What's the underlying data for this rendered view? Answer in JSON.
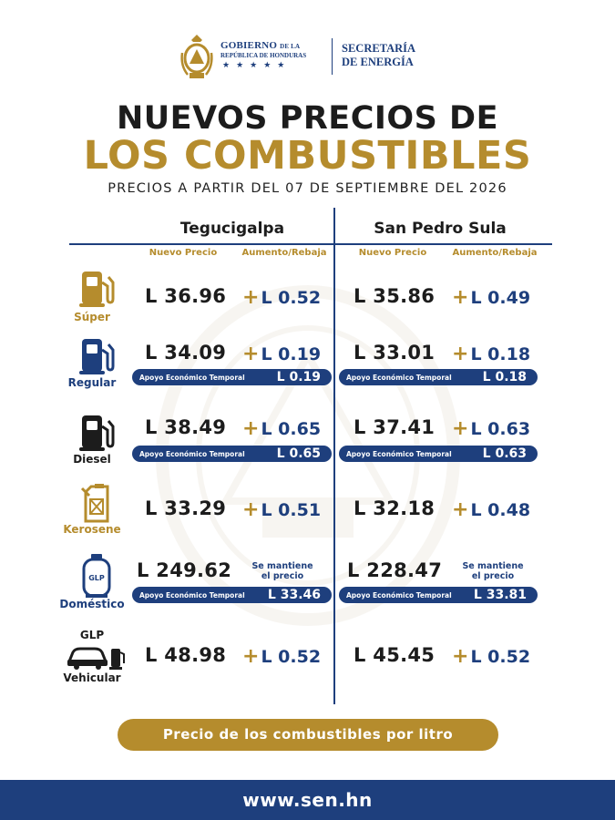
{
  "header": {
    "gov_line1": "GOBIERNO",
    "gov_line1_small": "DE LA",
    "gov_line2": "REPÚBLICA DE HONDURAS",
    "gov_stars": "★★★★★",
    "sec_line1": "SECRETARÍA",
    "sec_line2": "DE ENERGÍA"
  },
  "title_line1": "NUEVOS PRECIOS DE",
  "title_line2": "LOS COMBUSTIBLES",
  "subtitle": "PRECIOS A PARTIR DEL 07 DE SEPTIEMBRE DEL 2026",
  "cities": {
    "left": "Tegucigalpa",
    "right": "San Pedro Sula"
  },
  "column_headers": {
    "new_price": "Nuevo Precio",
    "change": "Aumento/Rebaja"
  },
  "apoyo_label": "Apoyo Económico Temporal",
  "plus_sign": "+",
  "colors": {
    "blue": "#1e3f7d",
    "gold": "#b58c2d",
    "red": "#c0392b"
  },
  "fuels": [
    {
      "name": "Súper",
      "label_color": "#b58c2d",
      "icon": "fuel-pump-icon",
      "teg_price": "L 36.96",
      "teg_change": "L 0.52",
      "sps_price": "L 35.86",
      "sps_change": "L 0.49"
    },
    {
      "name": "Regular",
      "label_color": "#1e3f7d",
      "icon": "fuel-pump-icon",
      "teg_price": "L 34.09",
      "teg_change": "L 0.19",
      "sps_price": "L 33.01",
      "sps_change": "L 0.18",
      "teg_apoyo": "L 0.19",
      "sps_apoyo": "L 0.18"
    },
    {
      "name": "Diesel",
      "label_color": "#1c1c1c",
      "icon": "fuel-pump-icon",
      "teg_price": "L 38.49",
      "teg_change": "L 0.65",
      "sps_price": "L 37.41",
      "sps_change": "L 0.63",
      "teg_apoyo": "L 0.65",
      "sps_apoyo": "L 0.63"
    },
    {
      "name": "Kerosene",
      "label_color": "#b58c2d",
      "icon": "jerrycan-icon",
      "teg_price": "L 33.29",
      "teg_change": "L 0.51",
      "sps_price": "L 32.18",
      "sps_change": "L 0.48"
    },
    {
      "name": "Doméstico",
      "label_color": "#1e3f7d",
      "icon": "gas-cylinder-icon",
      "cylinder_text": "GLP",
      "teg_price": "L 249.62",
      "teg_keep_1": "Se mantiene",
      "teg_keep_2": "el precio",
      "sps_price": "L 228.47",
      "sps_keep_1": "Se mantiene",
      "sps_keep_2": "el precio",
      "teg_apoyo": "L 33.46",
      "sps_apoyo": "L 33.81"
    },
    {
      "name": "Vehicular",
      "label_top": "GLP",
      "label_color": "#1c1c1c",
      "icon": "car-pump-icon",
      "teg_price": "L 48.98",
      "teg_change": "L 0.52",
      "sps_price": "L 45.45",
      "sps_change": "L 0.52"
    }
  ],
  "footer_note": "Precio de los combustibles por litro",
  "website": "www.sen.hn"
}
